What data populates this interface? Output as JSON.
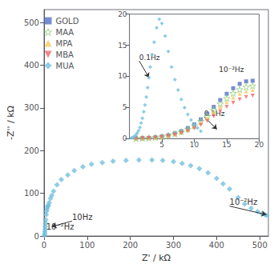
{
  "chart_data": [
    {
      "type": "scatter",
      "xlabel": "Z' / kΩ",
      "ylabel": "-Z'' / kΩ",
      "xlim": [
        0,
        520
      ],
      "ylim": [
        0,
        530
      ],
      "xticks": [
        0,
        100,
        200,
        300,
        400,
        500
      ],
      "yticks": [
        0,
        100,
        200,
        300,
        400,
        500
      ],
      "grid": false,
      "legend": "upper left",
      "series": [
        {
          "name": "MUA",
          "marker": "diamond",
          "x": [
            1,
            1.5,
            2,
            2.5,
            3,
            3.5,
            4,
            5,
            6,
            7,
            8,
            9,
            10,
            12,
            15,
            18,
            22,
            30,
            40,
            55,
            70,
            90,
            110,
            135,
            160,
            190,
            220,
            250,
            275,
            300,
            320,
            340,
            360,
            380,
            400,
            415,
            430,
            450,
            465,
            480,
            495,
            505,
            512,
            516
          ],
          "values": [
            2,
            5,
            10,
            15,
            22,
            30,
            38,
            50,
            58,
            63,
            68,
            70,
            72,
            78,
            88,
            95,
            105,
            120,
            132,
            143,
            153,
            162,
            168,
            172,
            175,
            177,
            178,
            178,
            177,
            174,
            170,
            165,
            158,
            148,
            135,
            122,
            110,
            90,
            75,
            65,
            57,
            52,
            50,
            48
          ]
        }
      ],
      "annotations": [
        {
          "text": "10⁻²Hz",
          "x": 5,
          "y": 12
        },
        {
          "text": "10Hz",
          "x": 65,
          "y": 35,
          "xy": [
            18,
            22
          ]
        },
        {
          "text": "10⁻²Hz",
          "x": 430,
          "y": 70,
          "xy": [
            515,
            50
          ]
        }
      ]
    },
    {
      "type": "scatter",
      "xlim": [
        0,
        20
      ],
      "ylim": [
        0,
        20
      ],
      "xticks": [
        5,
        10,
        15,
        20
      ],
      "yticks": [
        0,
        5,
        10,
        15,
        20
      ],
      "grid": false,
      "series": [
        {
          "name": "GOLD",
          "marker": "square",
          "x": [
            1.0,
            2.0,
            3.0,
            4.0,
            5.0,
            6.0,
            7.0,
            8.0,
            9.0,
            10.0,
            11.0,
            12.0,
            13.0,
            14.0,
            15.0,
            16.0,
            17.0,
            18.0,
            19.0
          ],
          "values": [
            0.05,
            0.08,
            0.12,
            0.2,
            0.35,
            0.55,
            0.85,
            1.2,
            1.7,
            2.3,
            3.1,
            4.0,
            5.1,
            6.2,
            7.2,
            8.1,
            8.8,
            9.2,
            9.3
          ]
        },
        {
          "name": "MAA",
          "marker": "open_star",
          "x": [
            1.0,
            2.0,
            3.0,
            4.0,
            5.0,
            6.0,
            7.0,
            8.0,
            9.0,
            10.0,
            11.0,
            12.0,
            13.0,
            14.0,
            15.0,
            16.0,
            17.0,
            18.0,
            19.0
          ],
          "values": [
            0.05,
            0.08,
            0.12,
            0.2,
            0.32,
            0.5,
            0.78,
            1.1,
            1.55,
            2.1,
            2.8,
            3.6,
            4.6,
            5.6,
            6.5,
            7.3,
            7.9,
            8.3,
            8.5
          ]
        },
        {
          "name": "MPA",
          "marker": "triangle",
          "x": [
            1.0,
            2.0,
            3.0,
            4.0,
            5.0,
            6.0,
            7.0,
            8.0,
            9.0,
            10.0,
            11.0,
            12.0,
            13.0,
            14.0,
            15.0,
            16.0,
            17.0,
            18.0,
            19.0
          ],
          "values": [
            0.05,
            0.08,
            0.12,
            0.18,
            0.3,
            0.45,
            0.7,
            1.0,
            1.4,
            1.9,
            2.55,
            3.3,
            4.2,
            5.1,
            5.9,
            6.6,
            7.2,
            7.6,
            7.8
          ]
        },
        {
          "name": "MBA",
          "marker": "triangle_down",
          "x": [
            1.0,
            2.0,
            3.0,
            4.0,
            5.0,
            6.0,
            7.0,
            8.0,
            9.0,
            10.0,
            11.0,
            12.0,
            13.0,
            14.0,
            15.0,
            16.0,
            17.0,
            18.0,
            19.0
          ],
          "values": [
            0.05,
            0.08,
            0.12,
            0.18,
            0.28,
            0.42,
            0.62,
            0.88,
            1.2,
            1.65,
            2.2,
            2.85,
            3.6,
            4.4,
            5.1,
            5.75,
            6.3,
            6.7,
            6.9
          ]
        },
        {
          "name": "MUA",
          "marker": "diamond",
          "x": [
            0.3,
            0.5,
            0.8,
            1.0,
            1.2,
            1.4,
            1.6,
            1.8,
            2.0,
            2.2,
            2.4,
            2.6,
            2.8,
            3.0,
            3.2,
            3.5,
            3.8,
            4.2,
            4.6,
            5.0,
            5.5,
            6.0,
            6.5,
            7.0,
            7.5,
            8.0,
            8.5,
            9.0,
            9.5,
            10.0,
            10.5,
            11.0
          ],
          "values": [
            0.1,
            0.2,
            0.4,
            0.6,
            0.9,
            1.3,
            1.8,
            2.5,
            3.3,
            4.3,
            5.4,
            6.7,
            8.2,
            9.8,
            11.5,
            13.5,
            15.5,
            17.8,
            19.2,
            18.5,
            16.5,
            14.0,
            11.5,
            9.5,
            7.8,
            6.3,
            5.0,
            3.9,
            3.0,
            2.3,
            1.7,
            1.2
          ]
        }
      ],
      "annotations": [
        {
          "text": "0.1Hz",
          "x": 1.5,
          "y": 12.5,
          "xy": [
            3.0,
            9.8
          ]
        },
        {
          "text": "0.1Hz",
          "x": 11.5,
          "y": 3.5,
          "xy": [
            13.5,
            1.5
          ]
        },
        {
          "text": "10⁻²Hz",
          "x": 13.8,
          "y": 10.5
        }
      ]
    }
  ]
}
